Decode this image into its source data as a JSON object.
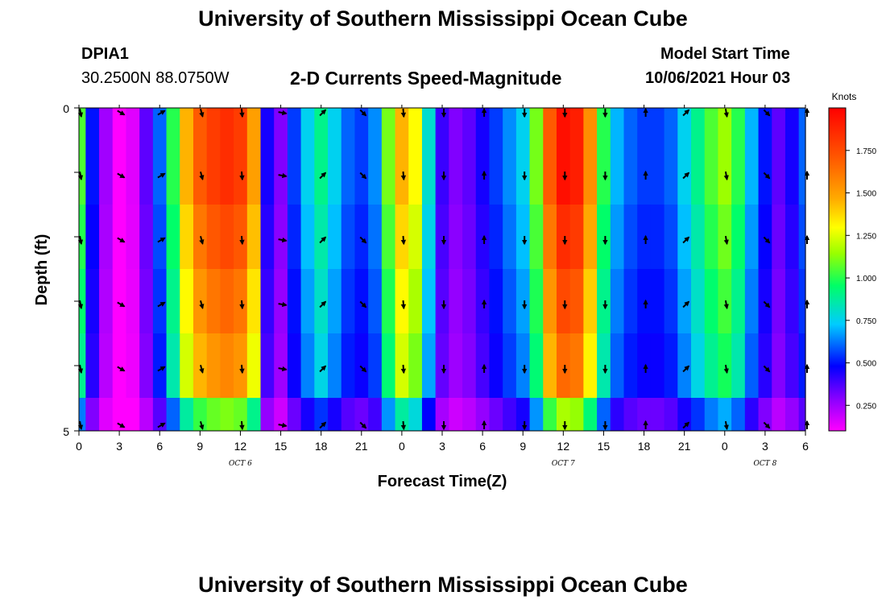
{
  "header": {
    "title": "University of Southern Mississippi Ocean Cube",
    "station": "DPIA1",
    "coords": "30.2500N  88.0750W",
    "subtitle": "2-D Currents Speed-Magnitude",
    "model_start_label": "Model Start Time",
    "model_start_value": "10/06/2021 Hour 03"
  },
  "footer": {
    "title": "University of Southern Mississippi Ocean Cube"
  },
  "chart_data": {
    "type": "heatmap",
    "title": "2-D Currents Speed-Magnitude",
    "xlabel": "Forecast Time(Z)",
    "ylabel": "Depth (ft)",
    "x_hours": [
      0,
      3,
      6,
      9,
      12,
      15,
      18,
      21,
      24,
      27,
      30,
      33,
      36,
      39,
      42,
      45,
      48,
      51,
      54
    ],
    "x_tick_labels": [
      "0",
      "3",
      "6",
      "9",
      "12",
      "15",
      "18",
      "21",
      "0",
      "3",
      "6",
      "9",
      "12",
      "15",
      "18",
      "21",
      "0",
      "3",
      "6"
    ],
    "date_labels": [
      {
        "text": "OCT 6",
        "hour": 12
      },
      {
        "text": "OCT 7",
        "hour": 36
      },
      {
        "text": "OCT 8",
        "hour": 51
      }
    ],
    "y_tick_labels": [
      "0",
      "5"
    ],
    "ylim": [
      0,
      5
    ],
    "depth_layers": 5,
    "colorbar": {
      "label": "Knots",
      "min": 0.1,
      "max": 2.0,
      "ticks": [
        "1.750",
        "1.500",
        "1.250",
        "1.000",
        "0.750",
        "0.500",
        "0.250"
      ],
      "tick_values": [
        1.75,
        1.5,
        1.25,
        1.0,
        0.75,
        0.5,
        0.25
      ]
    },
    "speed_profile_hours": [
      0,
      1,
      2,
      3,
      4,
      5,
      6,
      7,
      8,
      9,
      10,
      11,
      12,
      13,
      14,
      15,
      16,
      17,
      18,
      19,
      20,
      21,
      22,
      23,
      24,
      25,
      26,
      27,
      28,
      29,
      30,
      31,
      32,
      33,
      34,
      35,
      36,
      37,
      38,
      39,
      40,
      41,
      42,
      43,
      44,
      45,
      46,
      47,
      48,
      49,
      50,
      51,
      52,
      53,
      54
    ],
    "speed_surface_knots": [
      1.05,
      0.5,
      0.25,
      0.1,
      0.15,
      0.35,
      0.6,
      1.0,
      1.45,
      1.7,
      1.8,
      1.85,
      1.8,
      1.5,
      0.45,
      0.3,
      0.55,
      0.75,
      0.9,
      0.75,
      0.6,
      0.55,
      0.65,
      1.1,
      1.45,
      1.3,
      0.8,
      0.4,
      0.3,
      0.35,
      0.45,
      0.55,
      0.65,
      0.75,
      1.1,
      1.7,
      1.95,
      1.9,
      1.55,
      1.0,
      0.7,
      0.6,
      0.55,
      0.55,
      0.6,
      0.75,
      0.9,
      1.05,
      1.15,
      1.0,
      0.7,
      0.5,
      0.35,
      0.45,
      0.6
    ],
    "layer_factors": [
      1.0,
      1.0,
      0.95,
      0.9,
      0.85,
      0.6
    ],
    "vector_hours": [
      0,
      3,
      6,
      9,
      12,
      15,
      18,
      21,
      24,
      27,
      30,
      33,
      36,
      39,
      42,
      45,
      48,
      51,
      54
    ],
    "vector_direction_deg": [
      170,
      120,
      60,
      165,
      175,
      100,
      45,
      135,
      175,
      180,
      0,
      180,
      180,
      180,
      0,
      45,
      170,
      135,
      0
    ]
  }
}
